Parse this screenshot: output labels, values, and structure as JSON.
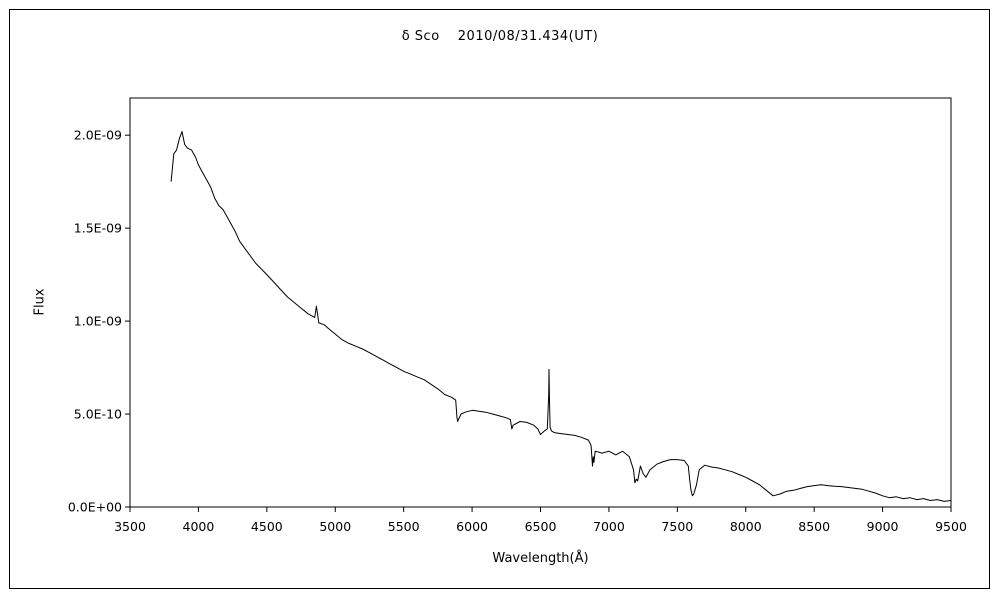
{
  "chart_data": {
    "type": "line",
    "title": "δ Sco　 2010/08/31.434(UT)",
    "xlabel": "Wavelength(Å)",
    "ylabel": "Flux",
    "xlim": [
      3500,
      9500
    ],
    "ylim": [
      0,
      2.2e-09
    ],
    "xticks": [
      3500,
      4000,
      4500,
      5000,
      5500,
      6000,
      6500,
      7000,
      7500,
      8000,
      8500,
      9000,
      9500
    ],
    "xtick_labels": [
      "3500",
      "4000",
      "4500",
      "5000",
      "5500",
      "6000",
      "6500",
      "7000",
      "7500",
      "8000",
      "8500",
      "9000",
      "9500"
    ],
    "yticks": [
      0,
      5e-10,
      1e-09,
      1.5e-09,
      2e-09
    ],
    "ytick_labels": [
      "0.0E+00",
      "5.0E-10",
      "1.0E-09",
      "1.5E-09",
      "2.0E-09"
    ],
    "grid": false,
    "series": [
      {
        "x": [
          3800,
          3820,
          3840,
          3860,
          3880,
          3900,
          3920,
          3950,
          3980,
          4000,
          4030,
          4060,
          4090,
          4120,
          4150,
          4180,
          4210,
          4240,
          4270,
          4300,
          4340,
          4380,
          4420,
          4460,
          4500,
          4550,
          4600,
          4650,
          4700,
          4750,
          4800,
          4850,
          4862,
          4880,
          4920,
          4950,
          5000,
          5050,
          5100,
          5150,
          5200,
          5250,
          5300,
          5350,
          5400,
          5450,
          5500,
          5550,
          5600,
          5650,
          5700,
          5750,
          5800,
          5850,
          5880,
          5890,
          5895,
          5900,
          5920,
          5950,
          6000,
          6050,
          6100,
          6150,
          6200,
          6250,
          6280,
          6290,
          6300,
          6350,
          6400,
          6450,
          6480,
          6500,
          6530,
          6550,
          6560,
          6562,
          6565,
          6570,
          6580,
          6600,
          6650,
          6700,
          6750,
          6800,
          6850,
          6870,
          6880,
          6885,
          6890,
          6900,
          6950,
          7000,
          7050,
          7100,
          7150,
          7180,
          7190,
          7200,
          7210,
          7230,
          7250,
          7270,
          7300,
          7350,
          7400,
          7450,
          7500,
          7550,
          7580,
          7590,
          7600,
          7610,
          7620,
          7640,
          7660,
          7700,
          7750,
          7800,
          7850,
          7900,
          7950,
          8000,
          8050,
          8100,
          8150,
          8200,
          8250,
          8300,
          8350,
          8400,
          8450,
          8500,
          8550,
          8600,
          8650,
          8700,
          8750,
          8800,
          8850,
          8900,
          8950,
          9000,
          9050,
          9100,
          9150,
          9200,
          9250,
          9300,
          9350,
          9400,
          9450,
          9500
        ],
        "y": [
          1.75e-09,
          1.9e-09,
          1.92e-09,
          1.98e-09,
          2.02e-09,
          1.95e-09,
          1.93e-09,
          1.92e-09,
          1.88e-09,
          1.84e-09,
          1.8e-09,
          1.76e-09,
          1.72e-09,
          1.66e-09,
          1.62e-09,
          1.6e-09,
          1.56e-09,
          1.52e-09,
          1.48e-09,
          1.43e-09,
          1.39e-09,
          1.35e-09,
          1.31e-09,
          1.28e-09,
          1.25e-09,
          1.21e-09,
          1.17e-09,
          1.13e-09,
          1.1e-09,
          1.07e-09,
          1.04e-09,
          1.02e-09,
          1.08e-09,
          9.9e-10,
          9.8e-10,
          9.6e-10,
          9.3e-10,
          9e-10,
          8.8e-10,
          8.65e-10,
          8.5e-10,
          8.3e-10,
          8.1e-10,
          7.9e-10,
          7.7e-10,
          7.5e-10,
          7.3e-10,
          7.15e-10,
          7e-10,
          6.85e-10,
          6.6e-10,
          6.35e-10,
          6.05e-10,
          5.9e-10,
          5.75e-10,
          4.8e-10,
          4.6e-10,
          4.7e-10,
          5e-10,
          5.1e-10,
          5.2e-10,
          5.15e-10,
          5.1e-10,
          5e-10,
          4.9e-10,
          4.8e-10,
          4.7e-10,
          4.2e-10,
          4.4e-10,
          4.6e-10,
          4.55e-10,
          4.4e-10,
          4.2e-10,
          3.9e-10,
          4.1e-10,
          4.2e-10,
          6e-10,
          7.4e-10,
          6e-10,
          4.3e-10,
          4.1e-10,
          4e-10,
          3.95e-10,
          3.9e-10,
          3.85e-10,
          3.75e-10,
          3.6e-10,
          3.3e-10,
          2.2e-10,
          2.7e-10,
          2.4e-10,
          3e-10,
          2.9e-10,
          3e-10,
          2.8e-10,
          3e-10,
          2.7e-10,
          2e-10,
          1.3e-10,
          1.5e-10,
          1.4e-10,
          2.2e-10,
          1.8e-10,
          1.6e-10,
          2e-10,
          2.3e-10,
          2.45e-10,
          2.55e-10,
          2.55e-10,
          2.5e-10,
          2.2e-10,
          1.5e-10,
          9e-11,
          6e-11,
          7e-11,
          1.2e-10,
          2e-10,
          2.25e-10,
          2.15e-10,
          2.1e-10,
          2e-10,
          1.9e-10,
          1.75e-10,
          1.6e-10,
          1.4e-10,
          1.2e-10,
          9e-11,
          6e-11,
          7e-11,
          8.5e-11,
          9e-11,
          1e-10,
          1.1e-10,
          1.15e-10,
          1.2e-10,
          1.15e-10,
          1.12e-10,
          1.1e-10,
          1.05e-10,
          1e-10,
          9.5e-11,
          8.5e-11,
          7.5e-11,
          6e-11,
          5e-11,
          5.5e-11,
          4.5e-11,
          5e-11,
          4e-11,
          4.5e-11,
          3.5e-11,
          4e-11,
          3e-11,
          3.5e-11
        ]
      }
    ]
  }
}
